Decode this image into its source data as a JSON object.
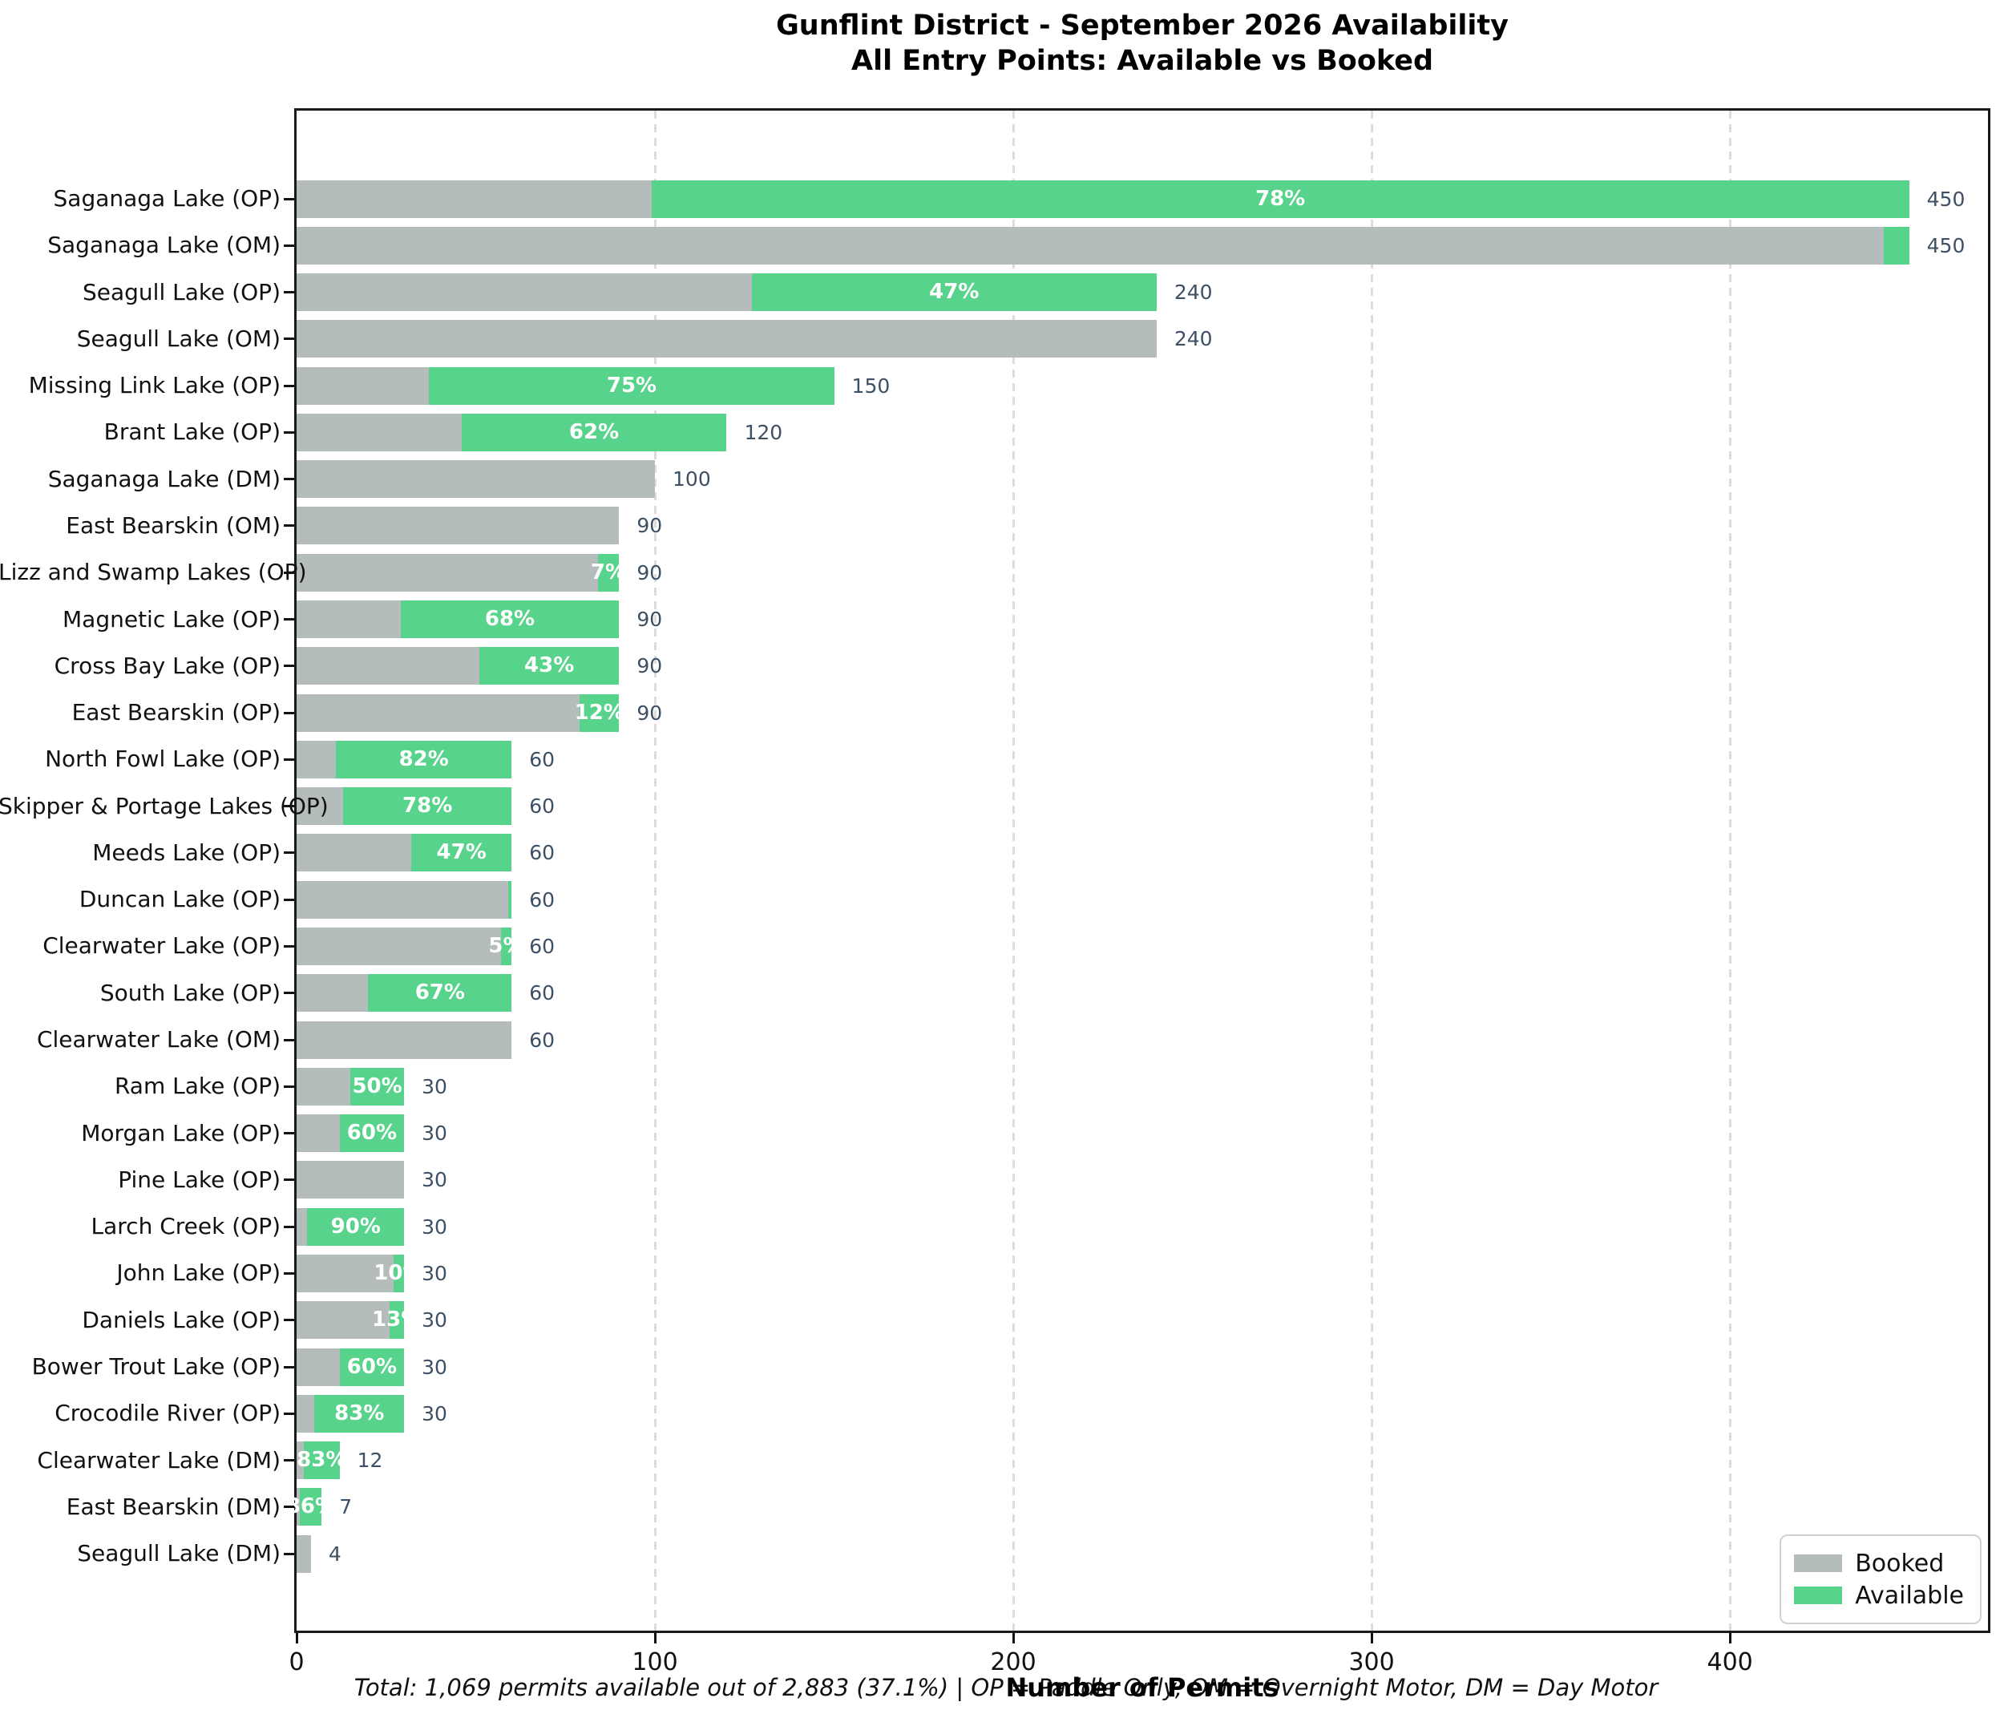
{
  "title": {
    "line1": "Gunflint District - September 2026 Availability",
    "line2": "All Entry Points: Available vs Booked"
  },
  "xlabel": "Number of Permits",
  "footnote": "Total: 1,069 permits available out of 2,883 (37.1%) | OP = Paddle Only, OM = Overnight Motor, DM = Day Motor",
  "legend": {
    "booked_label": "Booked",
    "available_label": "Available"
  },
  "colors": {
    "booked": "#b4bcbc",
    "available": "#58d38b",
    "count_label": "#3e5064",
    "pct_label": "#ffffff",
    "grid": "#dcdcdc",
    "spine": "#1a1a1a"
  },
  "chart_data": {
    "type": "bar",
    "orientation": "horizontal",
    "stacked": true,
    "title": "Gunflint District - September 2026 Availability / All Entry Points: Available vs Booked",
    "xlabel": "Number of Permits",
    "ylabel": "",
    "xlim": [
      0,
      472
    ],
    "xticks": [
      "0",
      "100",
      "200",
      "300",
      "400"
    ],
    "xtick_values": [
      0,
      100,
      200,
      300,
      400
    ],
    "grid": "vertical-dashed",
    "legend_position": "lower right",
    "legend_entries": [
      "Booked",
      "Available"
    ],
    "categories": [
      "Saganaga Lake (OP)",
      "Saganaga Lake (OM)",
      "Seagull Lake (OP)",
      "Seagull Lake (OM)",
      "Missing Link Lake (OP)",
      "Brant Lake (OP)",
      "Saganaga Lake (DM)",
      "East Bearskin (OM)",
      "Lizz and Swamp Lakes (OP)",
      "Magnetic Lake (OP)",
      "Cross Bay Lake (OP)",
      "East Bearskin (OP)",
      "North Fowl Lake (OP)",
      "Skipper & Portage Lakes (OP)",
      "Meeds Lake (OP)",
      "Duncan Lake (OP)",
      "Clearwater Lake (OP)",
      "South Lake (OP)",
      "Clearwater Lake (OM)",
      "Ram Lake (OP)",
      "Morgan Lake (OP)",
      "Pine Lake (OP)",
      "Larch Creek (OP)",
      "John Lake (OP)",
      "Daniels Lake (OP)",
      "Bower Trout Lake (OP)",
      "Crocodile River (OP)",
      "Clearwater Lake (DM)",
      "East Bearskin (DM)",
      "Seagull Lake (DM)"
    ],
    "series": [
      {
        "name": "Booked",
        "color": "#b4bcbc",
        "values": [
          99,
          443,
          127,
          240,
          37,
          46,
          100,
          90,
          84,
          29,
          51,
          79,
          11,
          13,
          32,
          59,
          57,
          20,
          60,
          15,
          12,
          30,
          3,
          27,
          26,
          12,
          5,
          2,
          1,
          4
        ]
      },
      {
        "name": "Available",
        "color": "#58d38b",
        "values": [
          351,
          7,
          113,
          0,
          113,
          74,
          0,
          0,
          6,
          61,
          39,
          11,
          49,
          47,
          28,
          1,
          3,
          40,
          0,
          15,
          18,
          0,
          27,
          3,
          4,
          18,
          25,
          10,
          6,
          0
        ]
      }
    ],
    "totals": [
      450,
      450,
      240,
      240,
      150,
      120,
      100,
      90,
      90,
      90,
      90,
      90,
      60,
      60,
      60,
      60,
      60,
      60,
      60,
      30,
      30,
      30,
      30,
      30,
      30,
      30,
      30,
      12,
      7,
      4
    ],
    "pct_labels": [
      "78%",
      "",
      "47%",
      "",
      "75%",
      "62%",
      "",
      "",
      "7%",
      "68%",
      "43%",
      "12%",
      "82%",
      "78%",
      "47%",
      "",
      "5%",
      "67%",
      "",
      "50%",
      "60%",
      "",
      "90%",
      "10%",
      "13%",
      "60%",
      "83%",
      "83%",
      "86%",
      ""
    ]
  }
}
